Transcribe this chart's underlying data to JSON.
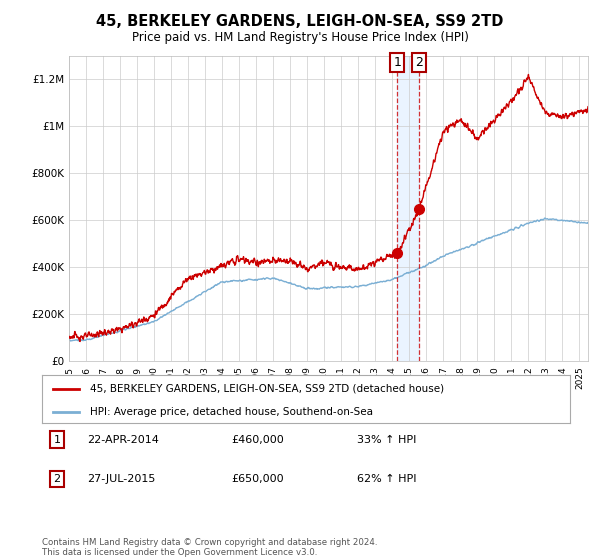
{
  "title": "45, BERKELEY GARDENS, LEIGH-ON-SEA, SS9 2TD",
  "subtitle": "Price paid vs. HM Land Registry's House Price Index (HPI)",
  "legend_line1": "45, BERKELEY GARDENS, LEIGH-ON-SEA, SS9 2TD (detached house)",
  "legend_line2": "HPI: Average price, detached house, Southend-on-Sea",
  "sale1_label": "1",
  "sale1_date": "22-APR-2014",
  "sale1_price": "£460,000",
  "sale1_hpi": "33% ↑ HPI",
  "sale1_year": 2014.3,
  "sale1_value": 460000,
  "sale2_label": "2",
  "sale2_date": "27-JUL-2015",
  "sale2_price": "£650,000",
  "sale2_hpi": "62% ↑ HPI",
  "sale2_year": 2015.58,
  "sale2_value": 650000,
  "red_color": "#cc0000",
  "blue_color": "#7bafd4",
  "dashed_color": "#cc0000",
  "marker_box_color": "#aa0000",
  "grid_color": "#cccccc",
  "background_color": "#ffffff",
  "shade_color": "#ddeeff",
  "footnote": "Contains HM Land Registry data © Crown copyright and database right 2024.\nThis data is licensed under the Open Government Licence v3.0.",
  "ylim": [
    0,
    1300000
  ],
  "xlim_start": 1995,
  "xlim_end": 2025.5
}
